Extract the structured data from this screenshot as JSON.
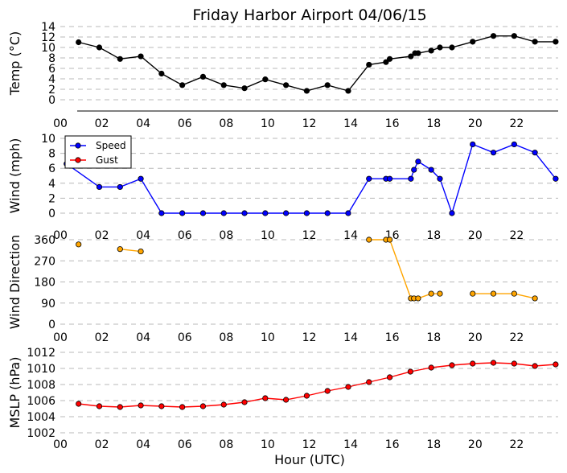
{
  "chart_data": {
    "type": "line",
    "title": "Friday Harbor Airport 04/06/15",
    "xlabel": "Hour (UTC)",
    "xlim": [
      0,
      24
    ],
    "xticks": [
      0,
      2,
      4,
      6,
      8,
      10,
      12,
      14,
      16,
      18,
      20,
      22
    ],
    "xtick_labels": [
      "00",
      "02",
      "04",
      "06",
      "08",
      "10",
      "12",
      "14",
      "16",
      "18",
      "20",
      "22"
    ],
    "panels": [
      {
        "id": "temp",
        "ylabel": "Temp (°C)",
        "ylim": [
          0,
          14
        ],
        "yticks": [
          0,
          2,
          4,
          6,
          8,
          10,
          12,
          14
        ],
        "grid": true,
        "series": [
          {
            "color": "#000000",
            "x": [
              0.88,
              1.88,
              2.88,
              3.88,
              4.88,
              5.88,
              6.88,
              7.88,
              8.88,
              9.88,
              10.88,
              11.88,
              12.88,
              13.88,
              14.88,
              15.7,
              15.88,
              16.9,
              17.1,
              17.25,
              17.88,
              18.3,
              18.88,
              19.88,
              20.88,
              21.88,
              22.88,
              23.88
            ],
            "y": [
              11,
              10,
              7.8,
              8.3,
              5,
              2.8,
              4.4,
              2.8,
              2.2,
              3.9,
              2.8,
              1.7,
              2.8,
              1.7,
              6.7,
              7.2,
              7.8,
              8.3,
              8.9,
              8.9,
              9.4,
              10,
              10,
              11.1,
              12.2,
              12.2,
              11.1,
              11.1
            ]
          }
        ]
      },
      {
        "id": "wind",
        "ylabel": "Wind (mph)",
        "ylim": [
          0,
          10
        ],
        "yticks": [
          0,
          2,
          4,
          6,
          8,
          10
        ],
        "grid": true,
        "legend": {
          "placement": "top-left",
          "entries": [
            "Speed",
            "Gust"
          ]
        },
        "series": [
          {
            "name": "Speed",
            "color": "#0000ff",
            "x": [
              0.3,
              1.88,
              2.88,
              3.88,
              4.88,
              5.88,
              6.88,
              7.88,
              8.88,
              9.88,
              10.88,
              11.88,
              12.88,
              13.88,
              14.88,
              15.7,
              15.88,
              16.9,
              17.05,
              17.25,
              17.88,
              18.3,
              18.88,
              19.88,
              20.88,
              21.88,
              22.88,
              23.88
            ],
            "y": [
              6.6,
              3.5,
              3.5,
              4.6,
              0,
              0,
              0,
              0,
              0,
              0,
              0,
              0,
              0,
              0,
              4.6,
              4.6,
              4.6,
              4.6,
              5.8,
              6.9,
              5.8,
              4.6,
              0,
              9.2,
              8.1,
              9.2,
              8.1,
              4.6
            ]
          },
          {
            "name": "Gust",
            "color": "#ff0000",
            "x": [],
            "y": []
          }
        ]
      },
      {
        "id": "dir",
        "ylabel": "Wind Direction",
        "ylim": [
          0,
          360
        ],
        "yticks": [
          0,
          90,
          180,
          270,
          360
        ],
        "grid": true,
        "series": [
          {
            "color": "#ffa500",
            "segments": [
              {
                "x": [
                  0.88
                ],
                "y": [
                  340
                ]
              },
              {
                "x": [
                  2.88,
                  3.88
                ],
                "y": [
                  320,
                  310
                ]
              },
              {
                "x": [
                  14.88,
                  15.7,
                  15.88,
                  16.9,
                  17.05,
                  17.25,
                  17.88,
                  18.3
                ],
                "y": [
                  360,
                  360,
                  360,
                  110,
                  110,
                  110,
                  130,
                  130
                ]
              },
              {
                "x": [
                  19.88,
                  20.88,
                  21.88,
                  22.88
                ],
                "y": [
                  130,
                  130,
                  130,
                  110
                ]
              }
            ]
          }
        ]
      },
      {
        "id": "mslp",
        "ylabel": "MSLP (hPa)",
        "ylim": [
          1002,
          1012
        ],
        "yticks": [
          1002,
          1004,
          1006,
          1008,
          1010,
          1012
        ],
        "grid": true,
        "series": [
          {
            "color": "#ff0000",
            "x": [
              0.88,
              1.88,
              2.88,
              3.88,
              4.88,
              5.88,
              6.88,
              7.88,
              8.88,
              9.88,
              10.88,
              11.88,
              12.88,
              13.88,
              14.88,
              15.88,
              16.88,
              17.88,
              18.88,
              19.88,
              20.88,
              21.88,
              22.88,
              23.88
            ],
            "y": [
              1005.6,
              1005.3,
              1005.2,
              1005.4,
              1005.3,
              1005.2,
              1005.3,
              1005.5,
              1005.8,
              1006.3,
              1006.1,
              1006.6,
              1007.2,
              1007.7,
              1008.3,
              1008.9,
              1009.6,
              1010.1,
              1010.4,
              1010.6,
              1010.7,
              1010.6,
              1010.3,
              1010.5
            ]
          }
        ]
      }
    ]
  }
}
